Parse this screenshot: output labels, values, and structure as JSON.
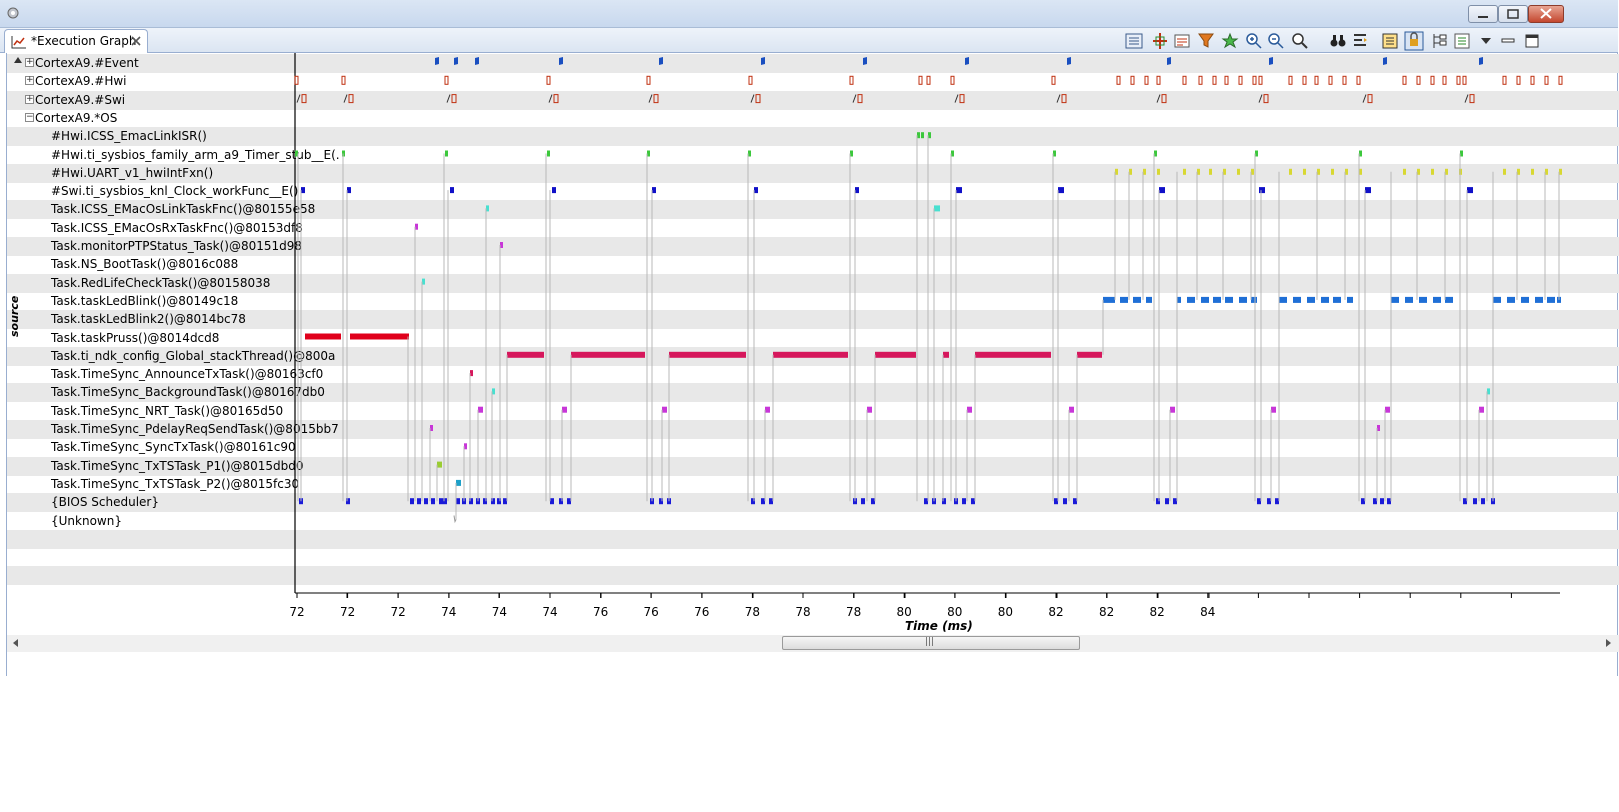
{
  "tab": {
    "title": "*Execution Graph"
  },
  "toolbar": {
    "icons": [
      "graph-view-icon",
      "cursor-measure-icon",
      "snapshot-icon",
      "filter-icon",
      "add-marker-icon",
      "zoom-in-icon",
      "zoom-out-icon",
      "zoom-fit-icon",
      "binoculars-icon",
      "align-icon",
      "group-icon",
      "freeze-icon",
      "tree-icon",
      "settings-icon",
      "view-menu-icon",
      "minimize-icon",
      "maximize-icon"
    ]
  },
  "graph": {
    "y_axis_label": "source",
    "x_axis_label": "Time (ms)",
    "x_ticks": [
      "72",
      "72",
      "72",
      "74",
      "74",
      "74",
      "76",
      "76",
      "76",
      "78",
      "78",
      "78",
      "80",
      "80",
      "80",
      "82",
      "82",
      "82",
      "84"
    ],
    "rows": [
      {
        "label": "CortexA9.#Event",
        "expander": "+",
        "indent": 0
      },
      {
        "label": "CortexA9.#Hwi",
        "expander": "+",
        "indent": 0
      },
      {
        "label": "CortexA9.#Swi",
        "expander": "+",
        "indent": 0
      },
      {
        "label": "CortexA9.*OS",
        "expander": "−",
        "indent": 0
      },
      {
        "label": "#Hwi.ICSS_EmacLinkISR()",
        "indent": 1
      },
      {
        "label": "#Hwi.ti_sysbios_family_arm_a9_Timer_stub__E(.",
        "indent": 1
      },
      {
        "label": "#Hwi.UART_v1_hwiIntFxn()",
        "indent": 1
      },
      {
        "label": "#Swi.ti_sysbios_knl_Clock_workFunc__E()",
        "indent": 1
      },
      {
        "label": "Task.ICSS_EMacOsLinkTaskFnc()@80155e58",
        "indent": 1
      },
      {
        "label": "Task.ICSS_EMacOsRxTaskFnc()@80153df8",
        "indent": 1
      },
      {
        "label": "Task.monitorPTPStatus_Task()@80151d98",
        "indent": 1
      },
      {
        "label": "Task.NS_BootTask()@8016c088",
        "indent": 1
      },
      {
        "label": "Task.RedLifeCheckTask()@80158038",
        "indent": 1
      },
      {
        "label": "Task.taskLedBlink()@80149c18",
        "indent": 1
      },
      {
        "label": "Task.taskLedBlink2()@8014bc78",
        "indent": 1
      },
      {
        "label": "Task.taskPruss()@8014dcd8",
        "indent": 1
      },
      {
        "label": "Task.ti_ndk_config_Global_stackThread()@800a",
        "indent": 1
      },
      {
        "label": "Task.TimeSync_AnnounceTxTask()@80163cf0",
        "indent": 1
      },
      {
        "label": "Task.TimeSync_BackgroundTask()@80167db0",
        "indent": 1
      },
      {
        "label": "Task.TimeSync_NRT_Task()@80165d50",
        "indent": 1
      },
      {
        "label": "Task.TimeSync_PdelayReqSendTask()@8015bb7",
        "indent": 1
      },
      {
        "label": "Task.TimeSync_SyncTxTask()@80161c90",
        "indent": 1
      },
      {
        "label": "Task.TimeSync_TxTSTask_P1()@8015dbd0",
        "indent": 1
      },
      {
        "label": "Task.TimeSync_TxTSTask_P2()@8015fc30",
        "indent": 1
      },
      {
        "label": "{BIOS Scheduler}",
        "indent": 1
      },
      {
        "label": "{Unknown}",
        "indent": 1
      },
      {
        "label": "",
        "indent": 1
      },
      {
        "label": "",
        "indent": 1
      },
      {
        "label": "",
        "indent": 1
      },
      {
        "label": "",
        "indent": 1
      }
    ]
  },
  "colors": {
    "taskPruss": "#e0001b",
    "stackThread": "#d6175c",
    "ledBlink": "#1f6fd6",
    "clockSwi": "#1010c8",
    "timer": "#3cc83c",
    "uart": "#d8d832",
    "scheduler": "#1a1ad8",
    "nrt": "#c836d8",
    "link": "#48e0d0",
    "event": "#1a4fc0",
    "hwi": "#c03010"
  }
}
